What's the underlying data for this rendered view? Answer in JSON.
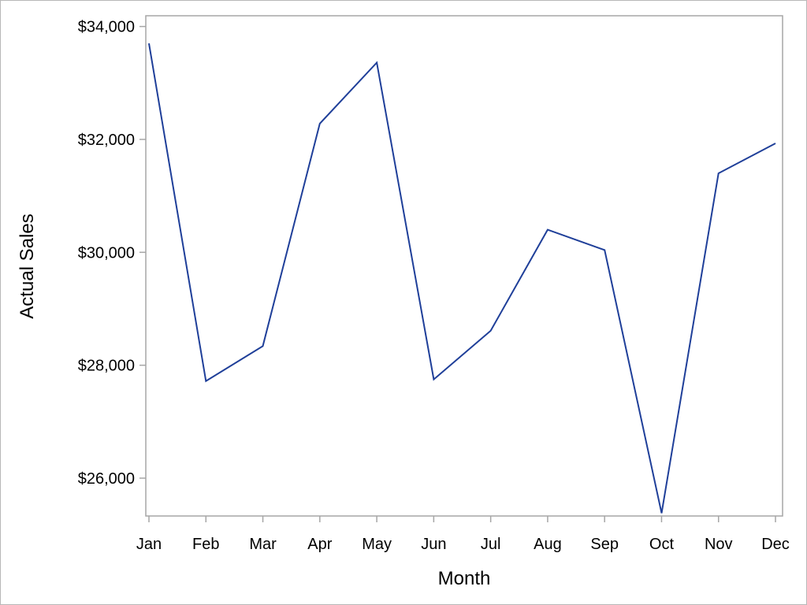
{
  "chart_data": {
    "type": "line",
    "title": "",
    "xlabel": "Month",
    "ylabel": "Actual Sales",
    "categories": [
      "Jan",
      "Feb",
      "Mar",
      "Apr",
      "May",
      "Jun",
      "Jul",
      "Aug",
      "Sep",
      "Oct",
      "Nov",
      "Dec"
    ],
    "series": [
      {
        "values": [
          33700,
          27720,
          28340,
          32280,
          33360,
          27750,
          28610,
          30400,
          30040,
          25380,
          31400,
          31930
        ]
      }
    ],
    "ylim": [
      25330,
      34190
    ],
    "yticks": [
      26000,
      28000,
      30000,
      32000,
      34000
    ],
    "ytick_labels": [
      "$26,000",
      "$28,000",
      "$30,000",
      "$32,000",
      "$34,000"
    ],
    "grid": false,
    "legend": "none",
    "colors": {
      "line": "#1f3f99",
      "axis": "#a6a6a6"
    }
  }
}
